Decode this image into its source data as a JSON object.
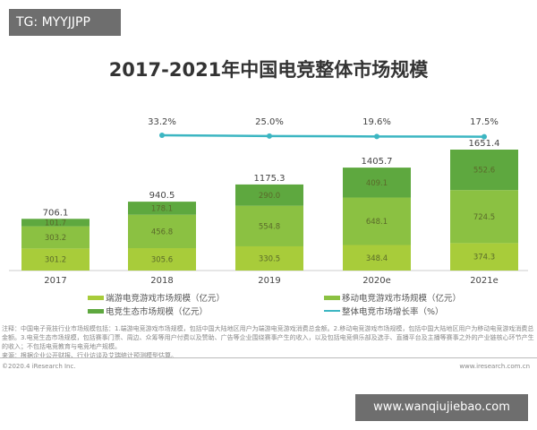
{
  "watermark_top": "TG: MYYJJPP",
  "watermark_bottom": "www.wanqiujiebao.com",
  "chart_data": {
    "type": "bar",
    "stacked": true,
    "title": "2017-2021年中国电竞整体市场规模",
    "categories": [
      "2017",
      "2018",
      "2019",
      "2020e",
      "2021e"
    ],
    "series": [
      {
        "name": "端游电竞游戏市场规模（亿元）",
        "color": "#a8cc3a",
        "values": [
          301.2,
          305.6,
          330.5,
          348.4,
          374.3
        ]
      },
      {
        "name": "移动电竞游戏市场规模（亿元）",
        "color": "#8bc142",
        "values": [
          303.2,
          456.8,
          554.8,
          648.1,
          724.5
        ]
      },
      {
        "name": "电竞生态市场规模（亿元）",
        "color": "#5ea83f",
        "values": [
          101.7,
          178.1,
          290.0,
          409.1,
          552.6
        ]
      }
    ],
    "totals": [
      "706.1",
      "940.5",
      "1175.3",
      "1405.7",
      "1651.4"
    ],
    "line": {
      "name": "整体电竞市场增长率（%）",
      "color": "#3cb6c2",
      "categories": [
        "2018",
        "2019",
        "2020e",
        "2021e"
      ],
      "values": [
        33.2,
        25.0,
        19.6,
        17.5
      ],
      "labels": [
        "33.2%",
        "25.0%",
        "19.6%",
        "17.5%"
      ]
    },
    "legend": "bottom",
    "grid": false
  },
  "note": "注释：中国电子竞技行业市场规模包括：1.端游电竞游戏市场规模，包括中国大陆地区用户为端游电竞游戏消费总金额。2.移动电竞游戏市场规模，包括中国大陆地区用户为移动电竞游戏消费总金额。3.电竞生态市场规模，包括赛事门票、周边、众筹等用户付费以及赞助、广告等企业围绕赛事产生的收入，以及包括电竞俱乐部及选手、直播平台及主播等赛事之外的产业链核心环节产生的收入；不包括电竞教育与电竞地产规模。",
  "source": "来源：根据企业公开财报、行业访谈及艾瑞统计预测模型估算。",
  "copyright": "©2020.4 iResearch Inc.",
  "site": "www.iresearch.com.cn"
}
